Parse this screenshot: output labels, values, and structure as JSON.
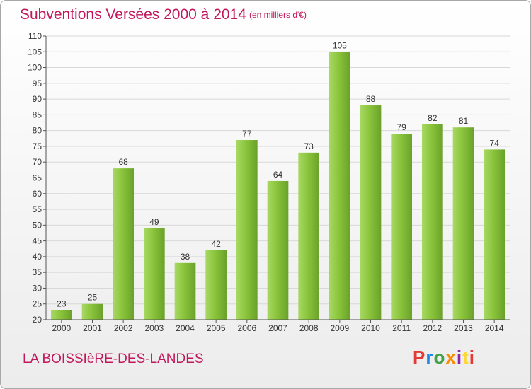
{
  "header": {
    "title": "Subventions Versées 2000 à 2014",
    "subtitle": "(en milliers d'€)"
  },
  "footer": {
    "commune": "LA BOISSIèRE-DES-LANDES",
    "brand": "Proxiti",
    "brand_colors": [
      "#e53935",
      "#1e88e5",
      "#43a047",
      "#fb8c00",
      "#8e24aa",
      "#fdd835",
      "#e53935"
    ]
  },
  "colors": {
    "title": "#c2185b",
    "bar": "#8ac43b",
    "bar_light": "#a8d964",
    "bar_dark": "#6aa12a",
    "grid": "#d8d8d8",
    "axis": "#555555"
  },
  "chart_data": {
    "type": "bar",
    "categories": [
      "2000",
      "2001",
      "2002",
      "2003",
      "2004",
      "2005",
      "2006",
      "2007",
      "2008",
      "2009",
      "2010",
      "2011",
      "2012",
      "2013",
      "2014"
    ],
    "values": [
      23,
      25,
      68,
      49,
      38,
      42,
      77,
      64,
      73,
      105,
      88,
      79,
      82,
      81,
      74
    ],
    "ylim": [
      20,
      110
    ],
    "yticks": [
      20,
      25,
      30,
      35,
      40,
      45,
      50,
      55,
      60,
      65,
      70,
      75,
      80,
      85,
      90,
      95,
      100,
      105,
      110
    ],
    "grid": true,
    "data_labels": true
  }
}
